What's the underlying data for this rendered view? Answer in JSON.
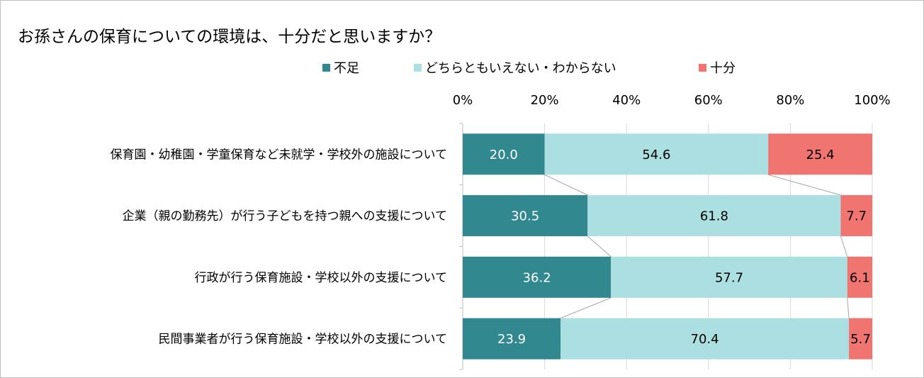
{
  "chart_data": {
    "type": "bar",
    "orientation": "horizontal",
    "stacked": "percent",
    "title": "お孫さんの保育についての環境は、十分だと思いますか？",
    "categories": [
      "保育園・幼稚園・学童保育など未就学・学校外の施設について",
      "企業（親の勤務先）が行う子どもを持つ親への支援について",
      "行政が行う保育施設・学校以外の支援について",
      "民間事業者が行う保育施設・学校以外の支援について"
    ],
    "series": [
      {
        "name": "不足",
        "color": "#31898f",
        "label_color": "#ffffff",
        "values": [
          20.0,
          30.5,
          36.2,
          23.9
        ]
      },
      {
        "name": "どちらともいえない・わからない",
        "color": "#abdfe1",
        "label_color": "#000000",
        "values": [
          54.6,
          61.8,
          57.7,
          70.4
        ]
      },
      {
        "name": "十分",
        "color": "#f07470",
        "label_color": "#000000",
        "values": [
          25.4,
          7.7,
          6.1,
          5.7
        ]
      }
    ],
    "x_ticks": [
      "0%",
      "20%",
      "40%",
      "60%",
      "80%",
      "100%"
    ],
    "xlim": [
      0,
      100
    ],
    "axis_position": "top",
    "legend_position": "top",
    "series_lines": true
  }
}
